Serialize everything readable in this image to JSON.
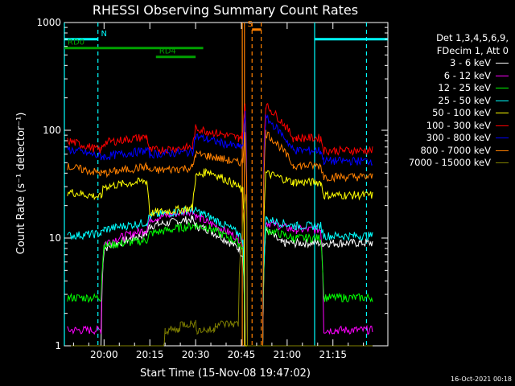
{
  "chart_data": {
    "type": "line",
    "title": "RHESSI Observing Summary Count Rates",
    "xlabel": "Start Time (15-Nov-08 19:47:02)",
    "ylabel": "Count Rate (s⁻¹ detector⁻¹)",
    "y_scale": "log",
    "ylim": [
      1,
      1000
    ],
    "xlim_minutes": [
      -13,
      93
    ],
    "x_ticks": [
      {
        "label": "20:00",
        "minute": 0
      },
      {
        "label": "20:15",
        "minute": 15
      },
      {
        "label": "20:30",
        "minute": 30
      },
      {
        "label": "20:45",
        "minute": 45
      },
      {
        "label": "21:00",
        "minute": 60
      },
      {
        "label": "21:15",
        "minute": 75
      }
    ],
    "y_ticks": [
      {
        "label": "1",
        "value": 1
      },
      {
        "label": "10",
        "value": 10
      },
      {
        "label": "100",
        "value": 100
      },
      {
        "label": "1000",
        "value": 1000
      }
    ],
    "legend_header": [
      "Det 1,3,4,5,6,9,",
      "FDecim 1, Att 0"
    ],
    "legend_position": "right",
    "series": [
      {
        "name": "3 - 6 keV",
        "color": "#ffffff",
        "x": [
          -12,
          -1,
          0,
          14,
          15,
          29,
          30,
          34,
          44,
          45.5,
          46.2,
          47,
          48,
          52,
          53,
          58,
          59,
          62,
          63,
          71,
          72,
          88
        ],
        "y": [
          1.0,
          1.0,
          8.0,
          11.0,
          13.0,
          15.0,
          13.0,
          12.0,
          8.0,
          7.0,
          1.0,
          1.0,
          1.0,
          1.0,
          12.0,
          9.0,
          9.0,
          9.0,
          9.0,
          9.0,
          9.0,
          9.0
        ]
      },
      {
        "name": "6 - 12 keV",
        "color": "#ff00ff",
        "x": [
          -12,
          -1,
          0,
          14,
          15,
          29,
          30,
          34,
          44,
          45.5,
          46.2,
          47,
          52,
          53,
          62,
          63,
          71,
          72,
          88
        ],
        "y": [
          1.4,
          1.4,
          9.0,
          12.0,
          15.0,
          18.0,
          16.0,
          14.0,
          10.0,
          9.0,
          1.0,
          1.0,
          1.0,
          14.0,
          12.0,
          12.0,
          12.0,
          1.4,
          1.4
        ]
      },
      {
        "name": "12 - 25 keV",
        "color": "#00ff00",
        "x": [
          -12,
          -1,
          0,
          14,
          15,
          29,
          30,
          34,
          44,
          45.5,
          46.2,
          47,
          52,
          53,
          62,
          63,
          71,
          72,
          88
        ],
        "y": [
          2.8,
          2.8,
          8.5,
          9.5,
          11.0,
          13.0,
          13.0,
          12.5,
          9.0,
          8.0,
          1.0,
          1.0,
          1.0,
          12.0,
          10.0,
          10.0,
          10.0,
          2.8,
          2.8
        ]
      },
      {
        "name": "25 - 50 keV",
        "color": "#00ffff",
        "x": [
          -12,
          -1,
          0,
          14,
          15,
          29,
          30,
          34,
          44,
          45.5,
          46.2,
          47,
          52,
          53,
          62,
          63,
          71,
          72,
          88
        ],
        "y": [
          10.5,
          11.0,
          12.0,
          14.0,
          16.0,
          18.5,
          18.0,
          16.0,
          11.0,
          9.5,
          1.0,
          1.0,
          1.0,
          15.0,
          13.0,
          13.0,
          13.0,
          10.5,
          10.5
        ]
      },
      {
        "name": "50 - 100 keV",
        "color": "#ffff00",
        "x": [
          -12,
          -1,
          0,
          14,
          15,
          29,
          30,
          34,
          44,
          45.5,
          46.2,
          47,
          52,
          53,
          62,
          63,
          71,
          72,
          88
        ],
        "y": [
          27,
          24,
          30,
          34,
          17,
          19,
          37,
          42,
          30,
          27,
          1.0,
          1.0,
          1.0,
          40,
          33,
          33,
          33,
          25,
          25
        ]
      },
      {
        "name": "100 - 300 keV",
        "color": "#ff0000",
        "x": [
          -12,
          -1,
          0,
          14,
          15,
          29,
          30,
          34,
          44,
          45.5,
          46.2,
          47,
          52,
          53,
          62,
          63,
          71,
          72,
          88
        ],
        "y": [
          80,
          65,
          77,
          87,
          65,
          70,
          105,
          98,
          85,
          90,
          170,
          1.0,
          1.0,
          170,
          85,
          85,
          85,
          65,
          65
        ]
      },
      {
        "name": "300 - 800 keV",
        "color": "#0000ff",
        "x": [
          -12,
          -1,
          0,
          14,
          15,
          29,
          30,
          34,
          44,
          45.5,
          46.2,
          47,
          52,
          53,
          62,
          63,
          71,
          72,
          88
        ],
        "y": [
          67,
          57,
          57,
          65,
          60,
          63,
          88,
          82,
          70,
          72,
          140,
          1.0,
          1.0,
          130,
          65,
          65,
          65,
          52,
          52
        ]
      },
      {
        "name": "800 - 7000 keV",
        "color": "#ff8000",
        "x": [
          -12,
          -1,
          0,
          14,
          15,
          29,
          30,
          34,
          44,
          45.5,
          46.2,
          47,
          52,
          53,
          62,
          63,
          71,
          72,
          88
        ],
        "y": [
          46,
          40,
          40,
          46,
          42,
          45,
          60,
          58,
          50,
          52,
          100,
          1.0,
          1.0,
          95,
          47,
          47,
          47,
          37,
          37
        ]
      },
      {
        "name": "7000 - 15000 keV",
        "color": "#808000",
        "x": [
          -12,
          19.5,
          20,
          24.5,
          25,
          30,
          30.5,
          36,
          36.5,
          44,
          45,
          46.5,
          47,
          52,
          53,
          88
        ],
        "y": [
          0.8,
          0.8,
          1.4,
          1.4,
          1.6,
          1.6,
          1.4,
          1.4,
          1.6,
          1.6,
          10,
          25,
          1.0,
          1.0,
          0.8,
          0.8
        ]
      }
    ],
    "annotations": [
      {
        "label": "N",
        "color": "#00ffff",
        "segments": [
          [
            -13,
            -2
          ],
          [
            69,
            93
          ]
        ],
        "y": 700
      },
      {
        "label": "RD0",
        "color": "#00a000",
        "segments": [
          [
            -13,
            32.5
          ]
        ],
        "y": 580
      },
      {
        "label": "RD4",
        "color": "#00a000",
        "segments": [
          [
            17,
            30
          ]
        ],
        "y": 480
      },
      {
        "label": "S",
        "color": "#ff8000",
        "segments": [
          [
            48.5,
            51.5
          ]
        ],
        "y": 860
      }
    ],
    "vlines": [
      {
        "minute": -13,
        "color": "#00ffff",
        "style": "solid"
      },
      {
        "minute": -2,
        "color": "#00ffff",
        "style": "dashed"
      },
      {
        "minute": 69,
        "color": "#00ffff",
        "style": "solid"
      },
      {
        "minute": 86,
        "color": "#00ffff",
        "style": "dashed"
      },
      {
        "minute": 45.3,
        "color": "#ff8000",
        "style": "solid"
      },
      {
        "minute": 46.0,
        "color": "#ff8000",
        "style": "solid"
      },
      {
        "minute": 48.5,
        "color": "#ff8000",
        "style": "dashed"
      },
      {
        "minute": 51.5,
        "color": "#ff8000",
        "style": "dashed"
      }
    ]
  },
  "footer": {
    "timestamp": "16-Oct-2021 00:18"
  }
}
